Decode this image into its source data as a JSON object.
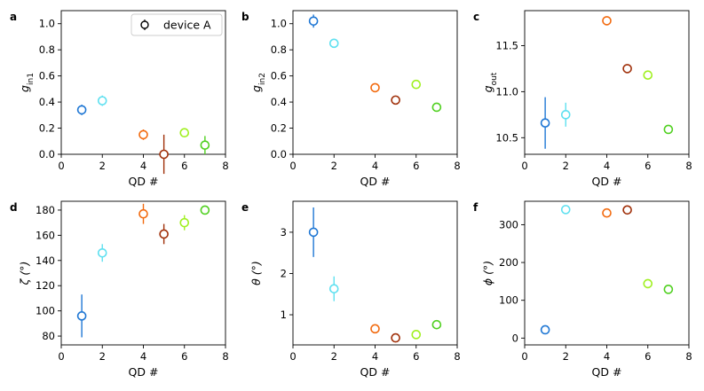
{
  "chart_data": [
    {
      "type": "scatter",
      "panel_label": "a",
      "xlabel": "QD #",
      "ylabel_main": "g",
      "ylabel_sub": "in1",
      "xlim": [
        0,
        8
      ],
      "ylim": [
        0,
        1.1
      ],
      "xticks": [
        0,
        2,
        4,
        6,
        8
      ],
      "yticks": [
        0.0,
        0.2,
        0.4,
        0.6,
        0.8,
        1.0
      ],
      "ytick_labels": [
        "0.0",
        "0.2",
        "0.4",
        "0.6",
        "0.8",
        "1.0"
      ],
      "legend": {
        "label": "device A",
        "position": "top-right"
      },
      "points": [
        {
          "x": 1,
          "y": 0.34,
          "err": 0.04,
          "color": "#1f77d4"
        },
        {
          "x": 2,
          "y": 0.41,
          "err": 0.04,
          "color": "#5fe0f0"
        },
        {
          "x": 4,
          "y": 0.15,
          "err": 0.04,
          "color": "#f26b10"
        },
        {
          "x": 5,
          "y": 0.0,
          "err": 0.15,
          "color": "#a0300a"
        },
        {
          "x": 6,
          "y": 0.165,
          "err": 0.02,
          "color": "#a0f020"
        },
        {
          "x": 7,
          "y": 0.07,
          "err": 0.07,
          "color": "#50d020"
        }
      ]
    },
    {
      "type": "scatter",
      "panel_label": "b",
      "xlabel": "QD #",
      "ylabel_main": "g",
      "ylabel_sub": "in2",
      "xlim": [
        0,
        8
      ],
      "ylim": [
        0,
        1.1
      ],
      "xticks": [
        0,
        2,
        4,
        6,
        8
      ],
      "yticks": [
        0.0,
        0.2,
        0.4,
        0.6,
        0.8,
        1.0
      ],
      "ytick_labels": [
        "0.0",
        "0.2",
        "0.4",
        "0.6",
        "0.8",
        "1.0"
      ],
      "points": [
        {
          "x": 1,
          "y": 1.02,
          "err": 0.05,
          "color": "#1f77d4"
        },
        {
          "x": 2,
          "y": 0.85,
          "err": 0.02,
          "color": "#5fe0f0"
        },
        {
          "x": 4,
          "y": 0.51,
          "err": 0.03,
          "color": "#f26b10"
        },
        {
          "x": 5,
          "y": 0.415,
          "err": 0.02,
          "color": "#a0300a"
        },
        {
          "x": 6,
          "y": 0.535,
          "err": 0.02,
          "color": "#a0f020"
        },
        {
          "x": 7,
          "y": 0.36,
          "err": 0.02,
          "color": "#50d020"
        }
      ]
    },
    {
      "type": "scatter",
      "panel_label": "c",
      "xlabel": "QD #",
      "ylabel_main": "g",
      "ylabel_sub": "out",
      "xlim": [
        0,
        8
      ],
      "ylim": [
        10.32,
        11.88
      ],
      "xticks": [
        0,
        2,
        4,
        6,
        8
      ],
      "yticks": [
        10.5,
        11.0,
        11.5
      ],
      "ytick_labels": [
        "10.5",
        "11.0",
        "11.5"
      ],
      "points": [
        {
          "x": 1,
          "y": 10.66,
          "err": 0.28,
          "color": "#1f77d4"
        },
        {
          "x": 2,
          "y": 10.75,
          "err": 0.13,
          "color": "#5fe0f0"
        },
        {
          "x": 4,
          "y": 11.77,
          "err": 0.02,
          "color": "#f26b10"
        },
        {
          "x": 5,
          "y": 11.25,
          "err": 0.02,
          "color": "#a0300a"
        },
        {
          "x": 6,
          "y": 11.18,
          "err": 0.03,
          "color": "#a0f020"
        },
        {
          "x": 7,
          "y": 10.59,
          "err": 0.02,
          "color": "#50d020"
        }
      ]
    },
    {
      "type": "scatter",
      "panel_label": "d",
      "xlabel": "QD #",
      "ylabel_main": "ζ (°)",
      "ylabel_sub": "",
      "xlim": [
        0,
        8
      ],
      "ylim": [
        73,
        187
      ],
      "xticks": [
        0,
        2,
        4,
        6,
        8
      ],
      "yticks": [
        80,
        100,
        120,
        140,
        160,
        180
      ],
      "ytick_labels": [
        "80",
        "100",
        "120",
        "140",
        "160",
        "180"
      ],
      "points": [
        {
          "x": 1,
          "y": 96,
          "err": 17,
          "color": "#1f77d4"
        },
        {
          "x": 2,
          "y": 146,
          "err": 7,
          "color": "#5fe0f0"
        },
        {
          "x": 4,
          "y": 177,
          "err": 8,
          "color": "#f26b10"
        },
        {
          "x": 5,
          "y": 161,
          "err": 8,
          "color": "#a0300a"
        },
        {
          "x": 6,
          "y": 170,
          "err": 6,
          "color": "#a0f020"
        },
        {
          "x": 7,
          "y": 180,
          "err": 3,
          "color": "#50d020"
        }
      ]
    },
    {
      "type": "scatter",
      "panel_label": "e",
      "xlabel": "QD #",
      "ylabel_main": "θ (°)",
      "ylabel_sub": "",
      "xlim": [
        0,
        8
      ],
      "ylim": [
        0.27,
        3.75
      ],
      "xticks": [
        0,
        2,
        4,
        6,
        8
      ],
      "yticks": [
        1,
        2,
        3
      ],
      "ytick_labels": [
        "1",
        "2",
        "3"
      ],
      "points": [
        {
          "x": 1,
          "y": 3.0,
          "err": 0.6,
          "color": "#1f77d4"
        },
        {
          "x": 2,
          "y": 1.63,
          "err": 0.3,
          "color": "#5fe0f0"
        },
        {
          "x": 4,
          "y": 0.66,
          "err": 0.06,
          "color": "#f26b10"
        },
        {
          "x": 5,
          "y": 0.44,
          "err": 0.05,
          "color": "#a0300a"
        },
        {
          "x": 6,
          "y": 0.52,
          "err": 0.04,
          "color": "#a0f020"
        },
        {
          "x": 7,
          "y": 0.76,
          "err": 0.06,
          "color": "#50d020"
        }
      ]
    },
    {
      "type": "scatter",
      "panel_label": "f",
      "xlabel": "QD #",
      "ylabel_main": "ϕ (°)",
      "ylabel_sub": "",
      "xlim": [
        0,
        8
      ],
      "ylim": [
        -18,
        362
      ],
      "xticks": [
        0,
        2,
        4,
        6,
        8
      ],
      "yticks": [
        0,
        100,
        200,
        300
      ],
      "ytick_labels": [
        "0",
        "100",
        "200",
        "300"
      ],
      "points": [
        {
          "x": 1,
          "y": 22,
          "err": 4,
          "color": "#1f77d4"
        },
        {
          "x": 2,
          "y": 340,
          "err": 3,
          "color": "#5fe0f0"
        },
        {
          "x": 4,
          "y": 331,
          "err": 4,
          "color": "#f26b10"
        },
        {
          "x": 5,
          "y": 339,
          "err": 3,
          "color": "#a0300a"
        },
        {
          "x": 6,
          "y": 144,
          "err": 4,
          "color": "#a0f020"
        },
        {
          "x": 7,
          "y": 129,
          "err": 4,
          "color": "#50d020"
        }
      ]
    }
  ]
}
